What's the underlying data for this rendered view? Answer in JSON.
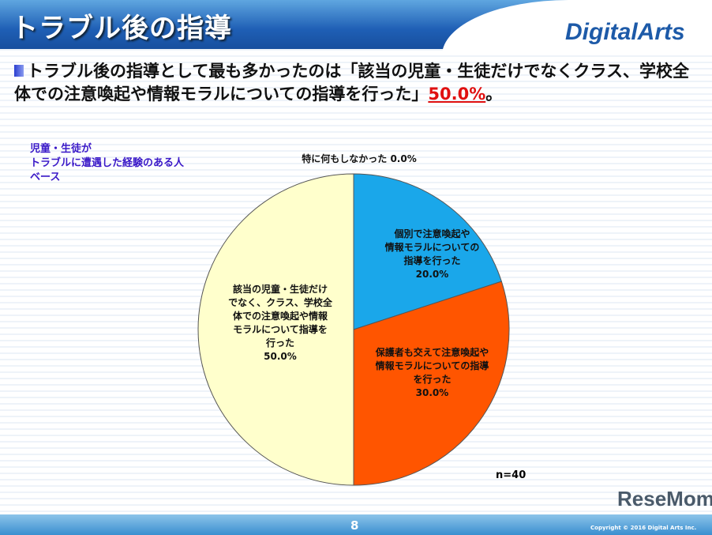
{
  "header": {
    "title": "トラブル後の指導",
    "logo": "DigitalArts"
  },
  "lead": {
    "text": "トラブル後の指導として最も多かったのは「該当の児童・生徒だけでなくクラス、学校全体での注意喚起や情報モラルについての指導を行った」",
    "highlight": "50.0%",
    "suffix": "。"
  },
  "base_note": [
    "児童・生徒が",
    "トラブルに遭遇した経験のある人",
    "ベース"
  ],
  "chart_data": {
    "type": "pie",
    "start": "top",
    "direction": "clockwise",
    "slices": [
      {
        "label": "特に何もしなかった",
        "value": 0.0,
        "color": "#ffffff"
      },
      {
        "label": "個別で注意喚起や情報モラルについての指導を行った",
        "value": 20.0,
        "color": "#1aa7ea"
      },
      {
        "label": "保護者も交えて注意喚起や情報モラルについての指導を行った",
        "value": 30.0,
        "color": "#ff5500"
      },
      {
        "label": "該当の児童・生徒だけでなく、クラス、学校全体での注意喚起や情報モラルについて指導を行った",
        "value": 50.0,
        "color": "#ffffcc"
      }
    ],
    "labels_display": [
      [
        "特に何もしなかった 0.0%"
      ],
      [
        "個別で注意喚起や",
        "情報モラルについての",
        "指導を行った",
        "20.0%"
      ],
      [
        "保護者も交えて注意喚起や",
        "情報モラルについての指導",
        "を行った",
        "30.0%"
      ],
      [
        "該当の児童・生徒だけ",
        "でなく、クラス、学校全",
        "体での注意喚起や情報",
        "モラルについて指導を",
        "行った",
        "50.0%"
      ]
    ],
    "note": "n=40"
  },
  "footer": {
    "page": "8",
    "copyright": "Copyright © 2016 Digital Arts Inc.",
    "watermark": "ReseMom"
  }
}
